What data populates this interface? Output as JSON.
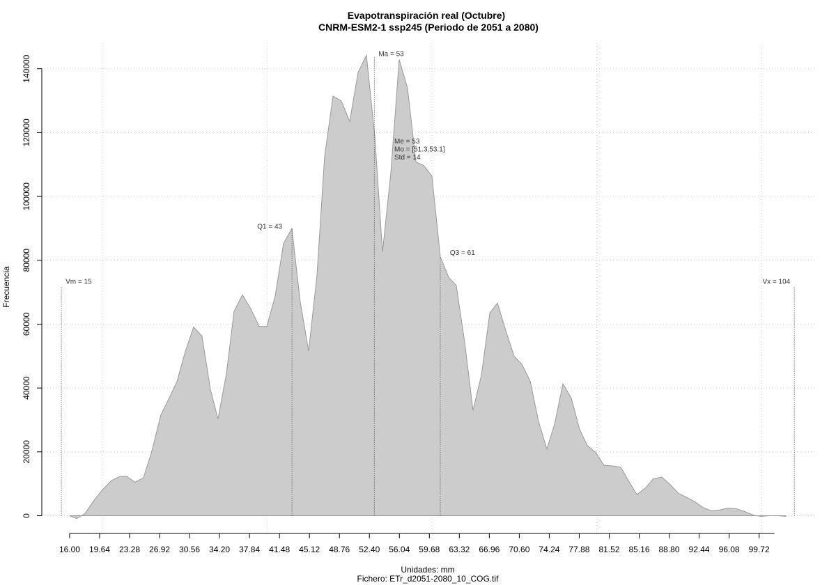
{
  "chart_data": {
    "type": "area",
    "title": "Evapotranspiración real (Octubre)",
    "subtitle": "CNRM-ESM2-1 ssp245 (Periodo de 2051 a 2080)",
    "x_label": "Unidades: mm",
    "caption": "Fichero: ETr_d2051-2080_10_COG.tif",
    "y_label": "Frecuencia",
    "color": "#cccccc",
    "xlim": [
      12.62,
      106.52
    ],
    "ylim": [
      -6000,
      148000
    ],
    "xticks": [
      {
        "value": 16,
        "label": "16.00"
      },
      {
        "value": 19.64,
        "label": "19.64"
      },
      {
        "value": 23.28,
        "label": "23.28"
      },
      {
        "value": 26.92,
        "label": "26.92"
      },
      {
        "value": 30.56,
        "label": "30.56"
      },
      {
        "value": 34.2,
        "label": "34.20"
      },
      {
        "value": 37.84,
        "label": "37.84"
      },
      {
        "value": 41.48,
        "label": "41.48"
      },
      {
        "value": 45.12,
        "label": "45.12"
      },
      {
        "value": 48.76,
        "label": "48.76"
      },
      {
        "value": 52.4,
        "label": "52.40"
      },
      {
        "value": 56.04,
        "label": "56.04"
      },
      {
        "value": 59.68,
        "label": "59.68"
      },
      {
        "value": 63.32,
        "label": "63.32"
      },
      {
        "value": 66.96,
        "label": "66.96"
      },
      {
        "value": 70.6,
        "label": "70.60"
      },
      {
        "value": 74.24,
        "label": "74.24"
      },
      {
        "value": 77.88,
        "label": "77.88"
      },
      {
        "value": 81.52,
        "label": "81.52"
      },
      {
        "value": 85.16,
        "label": "85.16"
      },
      {
        "value": 88.8,
        "label": "88.80"
      },
      {
        "value": 92.44,
        "label": "92.44"
      },
      {
        "value": 96.08,
        "label": "96.08"
      },
      {
        "value": 99.72,
        "label": "99.72"
      }
    ],
    "yticks": [
      0,
      20000,
      40000,
      60000,
      80000,
      100000,
      120000,
      140000
    ],
    "xgrid": [
      20,
      40,
      60,
      80,
      100
    ],
    "grid": true,
    "x": [
      16,
      16.85,
      17.86,
      18.96,
      20.06,
      21.08,
      22.09,
      22.94,
      23.95,
      24.97,
      25.98,
      27.08,
      28.1,
      29.03,
      30.04,
      31.06,
      32.07,
      33.09,
      34.02,
      35.04,
      35.97,
      36.98,
      38,
      39.01,
      39.94,
      40.96,
      41.97,
      42.99,
      44,
      45.02,
      46.03,
      46.96,
      47.98,
      48.99,
      50.01,
      51.03,
      52.04,
      53.06,
      53.99,
      55,
      56.02,
      57.03,
      58.05,
      58.98,
      59.99,
      61.01,
      62.02,
      62.95,
      63.97,
      64.98,
      66,
      67.02,
      67.95,
      68.96,
      69.98,
      70.91,
      71.92,
      72.94,
      73.95,
      74.88,
      75.9,
      76.91,
      77.93,
      78.86,
      79.87,
      80.89,
      81.9,
      82.92,
      83.85,
      84.87,
      85.88,
      86.9,
      87.91,
      88.93,
      89.94,
      90.96,
      91.89,
      92.9,
      93.92,
      94.93,
      95.95,
      96.96,
      97.98,
      98.99,
      99.93,
      100.94,
      101.96,
      102.97
    ],
    "values": [
      0,
      -880,
      660,
      4800,
      8350,
      11000,
      12300,
      12300,
      10500,
      11900,
      20200,
      31600,
      36900,
      42000,
      51400,
      59100,
      56300,
      39600,
      30300,
      44600,
      64000,
      69200,
      64800,
      59300,
      59300,
      68800,
      85300,
      89900,
      67000,
      51600,
      75200,
      112500,
      131400,
      129900,
      123500,
      138900,
      144200,
      118700,
      82600,
      107300,
      142900,
      133900,
      110800,
      109700,
      106400,
      81100,
      74700,
      72100,
      54300,
      33000,
      44000,
      63500,
      66600,
      58000,
      49900,
      47500,
      42200,
      29500,
      20900,
      28600,
      41300,
      36900,
      27000,
      22000,
      19800,
      15800,
      15600,
      15200,
      11000,
      6600,
      8600,
      11600,
      12100,
      9700,
      7000,
      5700,
      4400,
      2600,
      1500,
      1800,
      2400,
      2200,
      1300,
      220,
      -220,
      0,
      0,
      -220
    ],
    "markers": [
      {
        "label": "Vm = 15",
        "value": 15,
        "height": 72000
      },
      {
        "label": "Q1 = 43",
        "value": 43,
        "height": 89900
      },
      {
        "label": "Ma = 53",
        "value": 53,
        "height": 144000
      },
      {
        "label": "Q3 = 61",
        "value": 61,
        "height": 81000
      },
      {
        "label": "Vx = 104",
        "value": 104,
        "height": 72000
      }
    ],
    "stats": [
      "Me = 53",
      "Mo = [51.3,53.1]",
      "Std = 14"
    ]
  }
}
